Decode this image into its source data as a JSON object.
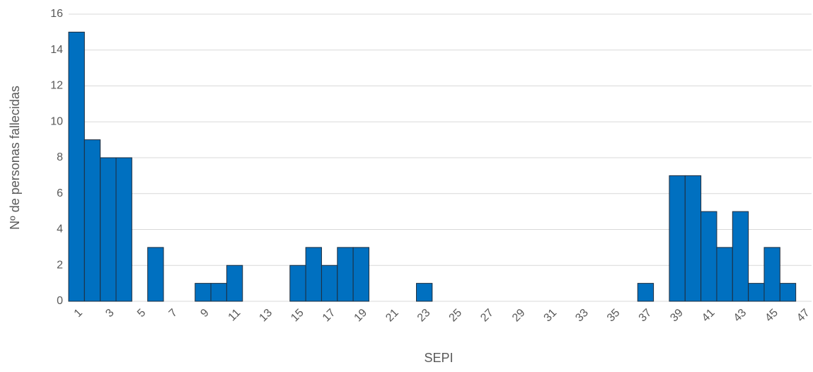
{
  "chart_data": {
    "type": "bar",
    "x_label": "SEPI",
    "y_label": "Nº de personas fallecidas",
    "categories": [
      "1",
      null,
      "3",
      null,
      "5",
      null,
      "7",
      null,
      "9",
      null,
      "11",
      null,
      "13",
      null,
      "15",
      null,
      "17",
      null,
      "19",
      null,
      "21",
      null,
      "23",
      null,
      "25",
      null,
      "27",
      null,
      "29",
      null,
      "31",
      null,
      "33",
      null,
      "35",
      null,
      "37",
      null,
      "39",
      null,
      "41",
      null,
      "43",
      null,
      "45",
      null,
      "47"
    ],
    "values": [
      15,
      9,
      8,
      8,
      0,
      3,
      0,
      0,
      1,
      1,
      2,
      0,
      0,
      0,
      2,
      3,
      2,
      3,
      3,
      0,
      0,
      0,
      1,
      0,
      0,
      0,
      0,
      0,
      0,
      0,
      0,
      0,
      0,
      0,
      0,
      0,
      1,
      0,
      7,
      7,
      5,
      3,
      5,
      1,
      3,
      1,
      0
    ],
    "color": "#0070c0",
    "ylim": [
      0,
      16
    ],
    "yticks": [
      0,
      2,
      4,
      6,
      8,
      10,
      12,
      14,
      16
    ],
    "grid": true
  }
}
